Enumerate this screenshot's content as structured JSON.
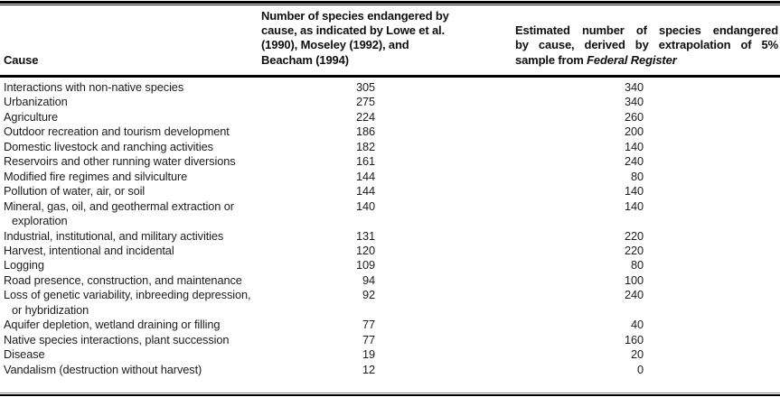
{
  "table": {
    "header": {
      "col1": "Cause",
      "col2_lines": [
        "Number of species endangered by",
        "cause, as indicated by Lowe et al.",
        "(1990), Moseley (1992), and",
        "Beacham (1994)"
      ],
      "col3_justified_lines": [
        "Estimated number of species endangered",
        "by cause, derived by extrapolation of 5%"
      ],
      "col3_last_plain": "sample from ",
      "col3_last_italic": "Federal Register"
    },
    "rows": [
      {
        "cause": "Interactions with non-native species",
        "lowe": "305",
        "federal": "340"
      },
      {
        "cause": "Urbanization",
        "lowe": "275",
        "federal": "340"
      },
      {
        "cause": "Agriculture",
        "lowe": "224",
        "federal": "260"
      },
      {
        "cause": "Outdoor recreation and tourism development",
        "lowe": "186",
        "federal": "200"
      },
      {
        "cause": "Domestic livestock and ranching activities",
        "lowe": "182",
        "federal": "140"
      },
      {
        "cause": "Reservoirs and other running water diversions",
        "lowe": "161",
        "federal": "240"
      },
      {
        "cause": "Modified fire regimes and silviculture",
        "lowe": "144",
        "federal": "80"
      },
      {
        "cause": "Pollution of water, air, or soil",
        "lowe": "144",
        "federal": "140"
      },
      {
        "cause": "Mineral, gas, oil, and geothermal extraction or",
        "cause2": "exploration",
        "lowe": "140",
        "federal": "140"
      },
      {
        "cause": "Industrial, institutional, and military activities",
        "lowe": "131",
        "federal": "220"
      },
      {
        "cause": "Harvest, intentional and incidental",
        "lowe": "120",
        "federal": "220"
      },
      {
        "cause": "Logging",
        "lowe": "109",
        "federal": "80"
      },
      {
        "cause": "Road presence, construction, and maintenance",
        "lowe": "94",
        "federal": "100"
      },
      {
        "cause": "Loss of genetic variability, inbreeding depression,",
        "cause2": "or hybridization",
        "lowe": "92",
        "federal": "240"
      },
      {
        "cause": "Aquifer depletion, wetland draining or filling",
        "lowe": "77",
        "federal": "40"
      },
      {
        "cause": "Native species interactions, plant succession",
        "lowe": "77",
        "federal": "160"
      },
      {
        "cause": "Disease",
        "lowe": "19",
        "federal": "20"
      },
      {
        "cause": "Vandalism (destruction without harvest)",
        "lowe": "12",
        "federal": "0"
      }
    ],
    "colors": {
      "text": "#1c1c1c",
      "rule": "#000000"
    }
  }
}
